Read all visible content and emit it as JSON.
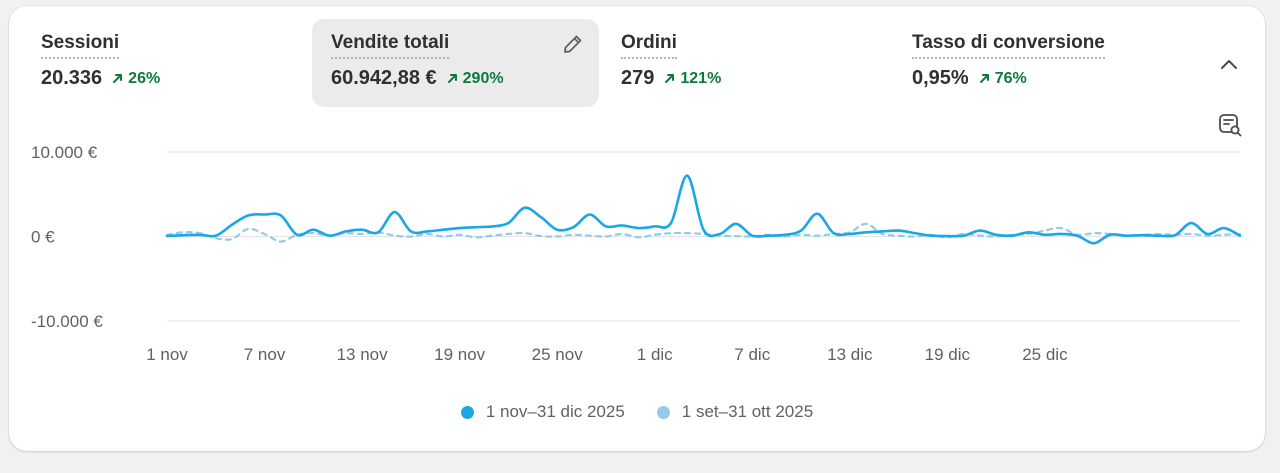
{
  "metrics": [
    {
      "title": "Sessioni",
      "value": "20.336",
      "change": "26%"
    },
    {
      "title": "Vendite totali",
      "value": "60.942,88 €",
      "change": "290%"
    },
    {
      "title": "Ordini",
      "value": "279",
      "change": "121%"
    },
    {
      "title": "Tasso di conversione",
      "value": "0,95%",
      "change": "76%"
    }
  ],
  "icons": {
    "edit": "pencil-icon",
    "collapse": "chevron-up-icon",
    "compare": "data-compare-icon",
    "trend": "arrow-up-right-icon"
  },
  "colors": {
    "primary_series": "#1ba6e5",
    "compare_series": "#93cbe6",
    "positive_change": "#0c7a3d",
    "active_metric_bg": "#ebebeb"
  },
  "legend": [
    {
      "label": "1 nov–31 dic 2025",
      "color": "#1ba6e5"
    },
    {
      "label": "1 set–31 ott 2025",
      "color": "#93cbe6"
    }
  ],
  "chart_data": {
    "type": "line",
    "y_ticks": [
      "10.000 €",
      "0 €",
      "-10.000 €"
    ],
    "y_tick_values": [
      10000,
      0,
      -10000
    ],
    "ylim": [
      -10000,
      10000
    ],
    "x_ticks": [
      "1 nov",
      "7 nov",
      "13 nov",
      "19 nov",
      "25 nov",
      "1 dic",
      "7 dic",
      "13 dic",
      "19 dic",
      "25 dic"
    ],
    "grid": true,
    "legend_position": "bottom",
    "series": [
      {
        "name": "1 nov–31 dic 2025",
        "color": "#1ba6e5",
        "style": "solid",
        "values": [
          50,
          150,
          200,
          100,
          1400,
          2500,
          2600,
          2500,
          200,
          800,
          100,
          600,
          800,
          500,
          2900,
          600,
          600,
          800,
          1000,
          1100,
          1200,
          1600,
          3400,
          2300,
          800,
          1100,
          2600,
          1200,
          1300,
          1000,
          1200,
          1600,
          7200,
          800,
          300,
          1500,
          100,
          100,
          200,
          700,
          2700,
          400,
          300,
          500,
          600,
          700,
          400,
          100,
          50,
          100,
          700,
          200,
          100,
          500,
          200,
          300,
          100,
          -800,
          200,
          100,
          150,
          100,
          150,
          1600,
          300,
          1000,
          100
        ]
      },
      {
        "name": "1 set–31 ott 2025",
        "color": "#93cbe6",
        "style": "dashed",
        "values": [
          200,
          500,
          400,
          -200,
          -300,
          900,
          300,
          -600,
          200,
          400,
          100,
          400,
          300,
          500,
          100,
          0,
          300,
          0,
          200,
          -100,
          100,
          300,
          400,
          50,
          0,
          200,
          100,
          0,
          300,
          -100,
          200,
          400,
          400,
          300,
          100,
          50,
          0,
          200,
          0,
          200,
          100,
          300,
          500,
          1500,
          300,
          100,
          0,
          200,
          -100,
          300,
          100,
          0,
          200,
          300,
          700,
          1000,
          200,
          400,
          300,
          100,
          200,
          300,
          200,
          300,
          100,
          200,
          300
        ]
      }
    ]
  }
}
